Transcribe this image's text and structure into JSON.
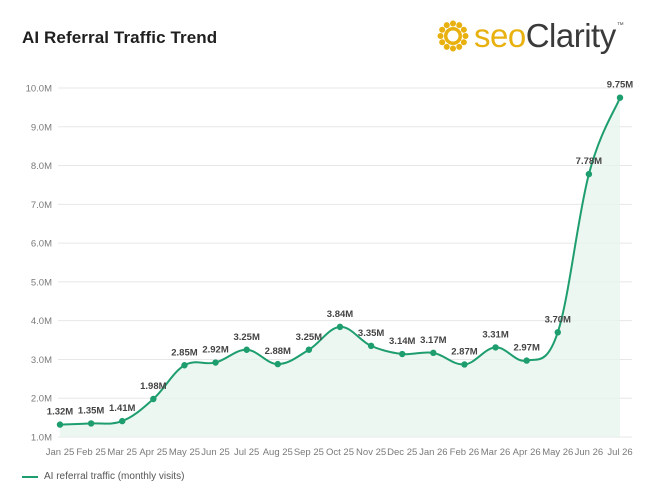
{
  "header": {
    "title": "AI Referral Traffic Trend",
    "logo_text_seo": "seo",
    "logo_text_brand": "Clarity",
    "logo_tm": "™"
  },
  "colors": {
    "line": "#1e9e6e",
    "area": "#e6f4ee",
    "grid": "#e7e7e7",
    "logo_accent": "#e8b10f"
  },
  "chart_data": {
    "type": "area",
    "title": "AI Referral Traffic Trend",
    "xlabel": "",
    "ylabel": "",
    "ylim": [
      1000000,
      10000000
    ],
    "yticks": [
      1000000,
      2000000,
      3000000,
      4000000,
      5000000,
      6000000,
      7000000,
      8000000,
      9000000,
      10000000
    ],
    "ytick_labels": [
      "1.0M",
      "2.0M",
      "3.0M",
      "4.0M",
      "5.0M",
      "6.0M",
      "7.0M",
      "8.0M",
      "9.0M",
      "10.0M"
    ],
    "grid": true,
    "legend_position": "bottom-left",
    "categories": [
      "Jan 25",
      "Feb 25",
      "Mar 25",
      "Apr 25",
      "May 25",
      "Jun 25",
      "Jul 25",
      "Aug 25",
      "Sep 25",
      "Oct 25",
      "Nov 25",
      "Dec 25",
      "Jan 26",
      "Feb 26",
      "Mar 26",
      "Apr 26",
      "May 26",
      "Jun 26",
      "Jul 26"
    ],
    "series": [
      {
        "name": "AI referral traffic (monthly visits)",
        "values": [
          1320000,
          1350000,
          1410000,
          1980000,
          2850000,
          2920000,
          3250000,
          2880000,
          3250000,
          3840000,
          3350000,
          3140000,
          3170000,
          2870000,
          3310000,
          2970000,
          3700000,
          7780000,
          9750000
        ],
        "labels": [
          "1.32M",
          "1.35M",
          "1.41M",
          "1.98M",
          "2.85M",
          "2.92M",
          "3.25M",
          "2.88M",
          "3.25M",
          "3.84M",
          "3.35M",
          "3.14M",
          "3.17M",
          "2.87M",
          "3.31M",
          "2.97M",
          "3.70M",
          "7.78M",
          "9.75M"
        ]
      }
    ]
  },
  "legend": {
    "label": "AI referral traffic (monthly visits)"
  }
}
